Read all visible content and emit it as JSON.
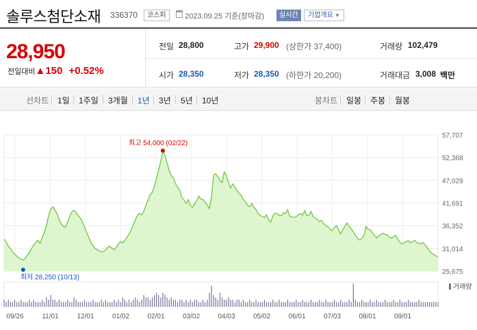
{
  "header": {
    "stock_name": "솔루스첨단소재",
    "stock_code": "336370",
    "market": "코스피",
    "date_text": "2023.09.25 기준(장마감)",
    "realtime_label": "실시간",
    "company_info_label": "기업개요"
  },
  "summary": {
    "price": "28,950",
    "change_label": "전일대비",
    "change_arrow": "▲",
    "change_value": "150",
    "change_pct": "+0.52%",
    "prev_label": "전일",
    "prev_value": "28,800",
    "high_label": "고가",
    "high_value": "29,900",
    "upper_limit": "(상한가 37,400)",
    "volume_label": "거래량",
    "volume_value": "102,479",
    "open_label": "시가",
    "open_value": "28,350",
    "low_label": "저가",
    "low_value": "28,350",
    "lower_limit": "(하한가 20,200)",
    "amount_label": "거래대금",
    "amount_value": "3,008",
    "amount_unit": "백만"
  },
  "tabs": {
    "line_label": "선차트",
    "periods": [
      "1일",
      "1주일",
      "3개월",
      "1년",
      "3년",
      "5년",
      "10년"
    ],
    "selected_period": "1년",
    "candle_label": "봉차트",
    "candles": [
      "일봉",
      "주봉",
      "월봉"
    ]
  },
  "chart_data": {
    "type": "area",
    "ylim": [
      25675,
      57707
    ],
    "y_ticks": [
      "57,707",
      "52,368",
      "47,029",
      "41,691",
      "36,352",
      "31,014",
      "25,675"
    ],
    "x_ticks": [
      "09/26",
      "11/01",
      "12/01",
      "01/02",
      "02/01",
      "03/02",
      "04/03",
      "05/02",
      "06/01",
      "07/03",
      "08/01",
      "09/01"
    ],
    "max_label": "최고 54,000 (02/22)",
    "min_label": "최저 28,250 (10/13)",
    "volume_label": "거래량",
    "line_color": "#6cc83c",
    "fill_color": "#dff5d0",
    "max_color": "#d60000",
    "min_color": "#1a57b8",
    "volume_color": "#7b7099",
    "values": [
      33200,
      32500,
      31600,
      30900,
      30200,
      29700,
      29200,
      28800,
      28500,
      28250,
      28700,
      29400,
      30100,
      31000,
      31800,
      32500,
      32900,
      32200,
      33600,
      34800,
      36400,
      38700,
      40200,
      40800,
      40100,
      39200,
      37800,
      36800,
      36200,
      36000,
      37200,
      38600,
      39600,
      40000,
      39400,
      38800,
      38200,
      37200,
      36100,
      34800,
      33600,
      32400,
      31600,
      31000,
      30700,
      30400,
      30200,
      30300,
      30700,
      31300,
      31500,
      31000,
      30700,
      31200,
      32100,
      32600,
      32300,
      32900,
      33600,
      34400,
      35300,
      36500,
      37700,
      38800,
      39300,
      38900,
      39700,
      41200,
      42400,
      43600,
      44200,
      45700,
      47500,
      49500,
      51500,
      54000,
      52800,
      51200,
      49300,
      48200,
      47600,
      46200,
      45500,
      44600,
      43000,
      42400,
      41600,
      42500,
      41100,
      40700,
      41400,
      42300,
      43300,
      42600,
      42500,
      41800,
      41200,
      40400,
      43200,
      48300,
      48500,
      47900,
      46900,
      46500,
      49000,
      48200,
      46500,
      45200,
      46200,
      45500,
      44600,
      44000,
      43500,
      42500,
      42000,
      41200,
      40800,
      41600,
      40700,
      40200,
      39200,
      38800,
      38500,
      38300,
      38900,
      37700,
      37200,
      38700,
      39300,
      39200,
      38800,
      38700,
      39400,
      39200,
      40100,
      38600,
      38400,
      38300,
      38500,
      38900,
      39200,
      38800,
      39900,
      38700,
      38800,
      39700,
      38500,
      38200,
      37800,
      37300,
      37600,
      36800,
      36300,
      36100,
      35500,
      35200,
      35900,
      36400,
      35400,
      34400,
      35400,
      36200,
      37000,
      36300,
      35600,
      34900,
      34100,
      33400,
      33000,
      33400,
      34000,
      36200,
      35500,
      35400,
      34700,
      34100,
      33500,
      33900,
      34300,
      34600,
      34300,
      34200,
      33700,
      33400,
      33800,
      34100,
      33100,
      32500,
      32100,
      32300,
      32600,
      32800,
      32300,
      32600,
      32900,
      32400,
      32200,
      32100,
      32400,
      31800,
      31200,
      30400,
      29900,
      29500,
      29300,
      28950
    ],
    "volume": [
      3,
      2,
      3,
      2,
      2,
      3,
      2,
      2,
      3,
      2,
      2,
      2,
      3,
      2,
      3,
      2,
      2,
      2,
      3,
      2,
      4,
      3,
      5,
      3,
      3,
      2,
      3,
      2,
      2,
      2,
      3,
      2,
      2,
      4,
      3,
      2,
      2,
      2,
      3,
      2,
      2,
      2,
      3,
      2,
      2,
      2,
      3,
      2,
      3,
      2,
      2,
      2,
      3,
      2,
      3,
      2,
      4,
      3,
      2,
      3,
      2,
      3,
      4,
      3,
      2,
      3,
      5,
      4,
      4,
      3,
      4,
      5,
      6,
      5,
      4,
      6,
      5,
      4,
      3,
      4,
      3,
      3,
      2,
      3,
      3,
      2,
      3,
      2,
      3,
      2,
      3,
      3,
      2,
      2,
      3,
      2,
      3,
      6,
      9,
      5,
      4,
      3,
      6,
      4,
      3,
      3,
      4,
      3,
      3,
      2,
      3,
      3,
      2,
      3,
      2,
      2,
      3,
      2,
      2,
      3,
      2,
      2,
      2,
      3,
      2,
      2,
      2,
      3,
      2,
      2,
      3,
      2,
      2,
      2,
      3,
      2,
      2,
      2,
      3,
      2,
      2,
      3,
      2,
      2,
      2,
      3,
      2,
      2,
      2,
      3,
      2,
      2,
      3,
      2,
      2,
      2,
      3,
      2,
      2,
      3,
      2,
      2,
      2,
      3,
      2,
      10,
      3,
      2,
      2,
      3,
      2,
      2,
      2,
      3,
      2,
      2,
      3,
      2,
      2,
      2,
      3,
      2,
      2,
      2,
      3,
      2,
      2,
      3,
      2,
      2,
      2,
      3,
      2,
      2,
      2,
      2,
      3,
      2,
      2,
      2,
      2,
      2,
      2,
      2,
      2,
      2
    ]
  }
}
